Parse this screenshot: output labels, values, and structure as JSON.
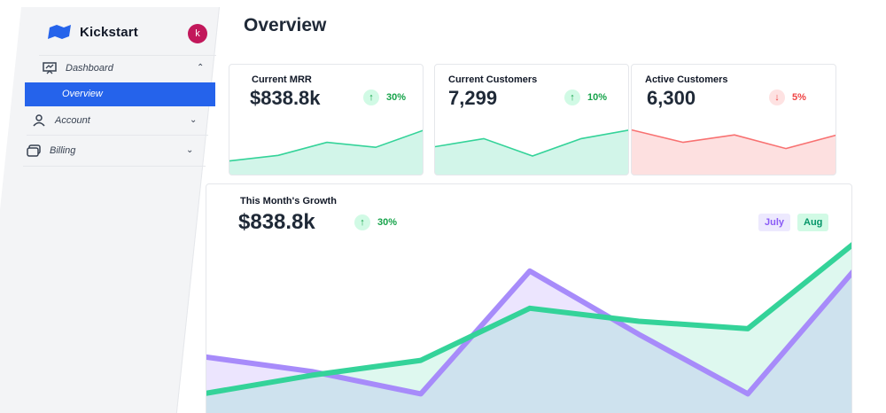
{
  "brand": {
    "name": "Kickstart",
    "avatar_initial": "k",
    "accent": "#2563eb"
  },
  "sidebar": {
    "items": [
      {
        "label": "Dashboard",
        "icon": "presentation-icon",
        "expanded": true
      },
      {
        "label": "Overview",
        "active": true
      },
      {
        "label": "Account",
        "icon": "user-icon",
        "expanded": false
      },
      {
        "label": "Billing",
        "icon": "credit-card-icon",
        "expanded": false
      }
    ]
  },
  "page": {
    "title": "Overview"
  },
  "cards": [
    {
      "label": "Current MRR",
      "value": "$838.8k",
      "delta": "30%",
      "direction": "up",
      "color": "#34d399",
      "sparkline": [
        0.22,
        0.31,
        0.52,
        0.44,
        0.72
      ]
    },
    {
      "label": "Current Customers",
      "value": "7,299",
      "delta": "10%",
      "direction": "up",
      "color": "#34d399",
      "sparkline": [
        0.45,
        0.58,
        0.3,
        0.58,
        0.72
      ]
    },
    {
      "label": "Active Customers",
      "value": "6,300",
      "delta": "5%",
      "direction": "down",
      "color": "#f87171",
      "sparkline": [
        0.72,
        0.52,
        0.64,
        0.42,
        0.64
      ]
    }
  ],
  "growth": {
    "title": "This Month's Growth",
    "value": "$838.8k",
    "delta": "30%",
    "legend": {
      "july": "July",
      "aug": "Aug"
    },
    "colors": {
      "july": "#a78bfa",
      "aug": "#34d399"
    }
  },
  "chart_data": {
    "type": "area",
    "x": [
      0,
      1,
      2,
      3,
      4,
      5,
      6
    ],
    "series": [
      {
        "name": "July",
        "values": [
          0.36,
          0.28,
          0.16,
          0.82,
          0.48,
          0.16,
          0.84
        ]
      },
      {
        "name": "Aug",
        "values": [
          0.16,
          0.26,
          0.34,
          0.62,
          0.55,
          0.51,
          0.98
        ]
      }
    ],
    "ylim": [
      0,
      1
    ],
    "grid": false
  }
}
